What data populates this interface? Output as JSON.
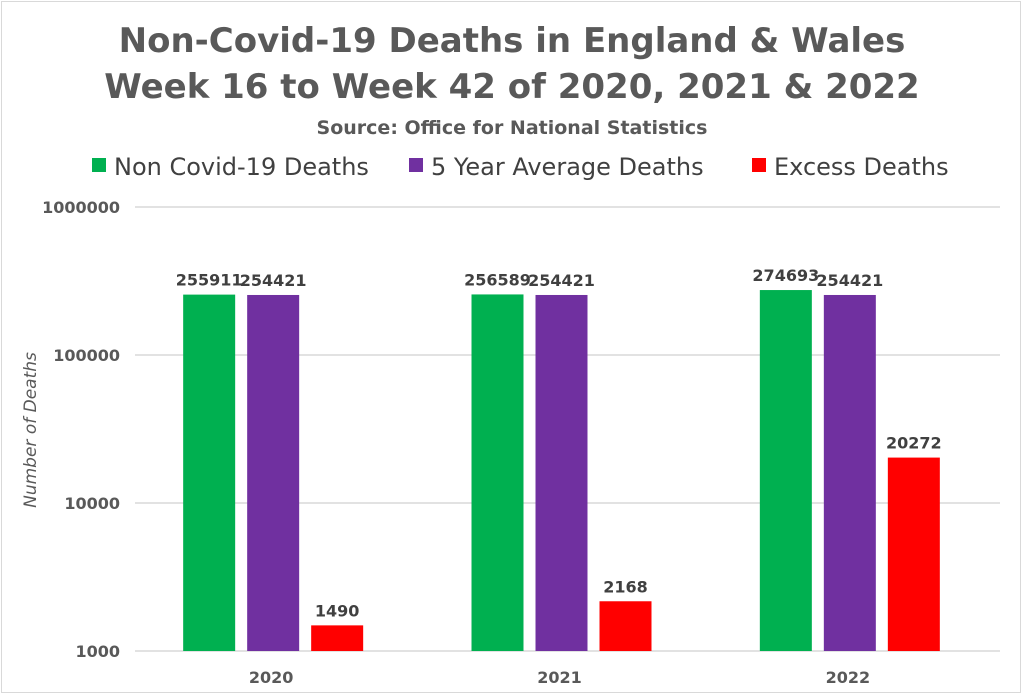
{
  "chart_data": {
    "type": "bar",
    "title": "Non-Covid-19 Deaths in England & Wales",
    "title_line2": "Week 16 to Week 42 of 2020, 2021 & 2022",
    "subtitle": "Source: Office for National Statistics",
    "ylabel": "Number of Deaths",
    "xlabel": "",
    "yscale": "log",
    "ylim": [
      1000,
      1000000
    ],
    "yticks": [
      "1000",
      "10000",
      "100000",
      "1000000"
    ],
    "categories": [
      "2020",
      "2021",
      "2022"
    ],
    "series": [
      {
        "name": "Non Covid-19 Deaths",
        "color": "#00b050",
        "values": [
          255911,
          256589,
          274693
        ]
      },
      {
        "name": "5 Year Average Deaths",
        "color": "#7030a0",
        "values": [
          254421,
          254421,
          254421
        ]
      },
      {
        "name": "Excess Deaths",
        "color": "#ff0000",
        "values": [
          1490,
          2168,
          20272
        ]
      }
    ],
    "legend_position": "top",
    "grid": true
  }
}
